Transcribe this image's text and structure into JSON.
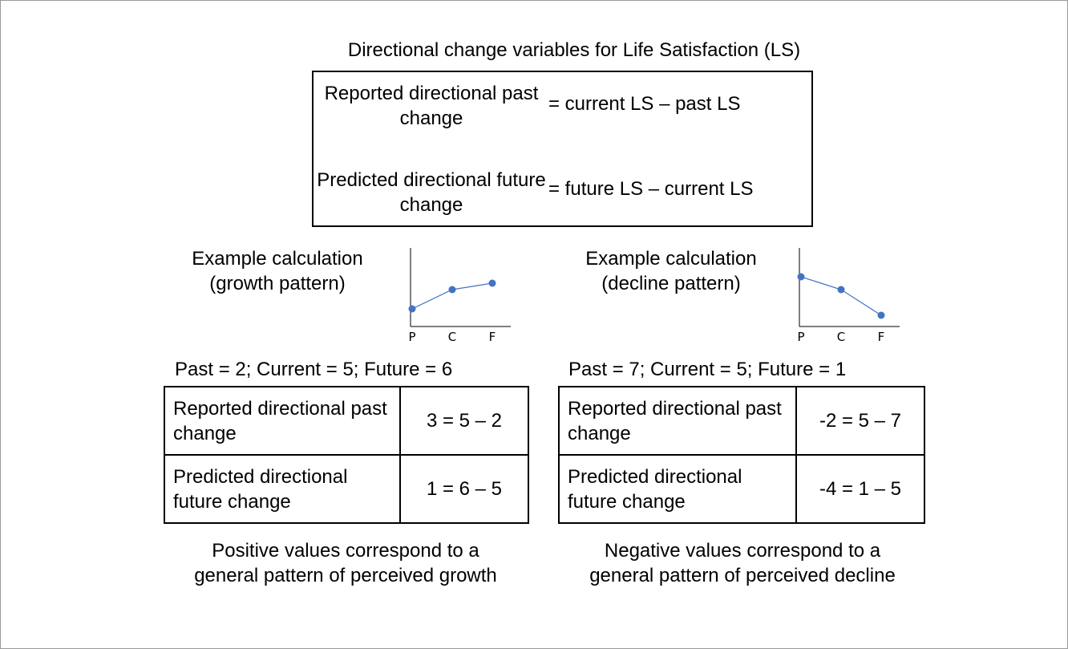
{
  "title": "Directional change variables for Life Satisfaction (LS)",
  "definitions": [
    {
      "label": "Reported directional past change",
      "formula": "= current LS – past LS"
    },
    {
      "label": "Predicted directional future change",
      "formula": "= future LS – current LS"
    }
  ],
  "examples": [
    {
      "heading": "Example calculation (growth pattern)",
      "chart": {
        "type": "line",
        "categories": [
          "P",
          "C",
          "F"
        ],
        "values": [
          2,
          5,
          6
        ],
        "ylim": [
          0,
          12
        ],
        "color": "#4472c4"
      },
      "given": "Past = 2; Current = 5; Future = 6",
      "rows": [
        [
          "Reported directional past change",
          "3 = 5 – 2"
        ],
        [
          "Predicted directional future change",
          "1 = 6 – 5"
        ]
      ],
      "note": "Positive values correspond to a general pattern of perceived growth"
    },
    {
      "heading": "Example calculation (decline pattern)",
      "chart": {
        "type": "line",
        "categories": [
          "P",
          "C",
          "F"
        ],
        "values": [
          7,
          5,
          1
        ],
        "ylim": [
          0,
          12
        ],
        "color": "#4472c4"
      },
      "given": "Past = 7; Current = 5; Future = 1",
      "rows": [
        [
          "Reported directional past change",
          "-2 = 5 – 7"
        ],
        [
          "Predicted directional future change",
          "-4 = 1 – 5"
        ]
      ],
      "note": "Negative values correspond to a general pattern of perceived decline"
    }
  ]
}
